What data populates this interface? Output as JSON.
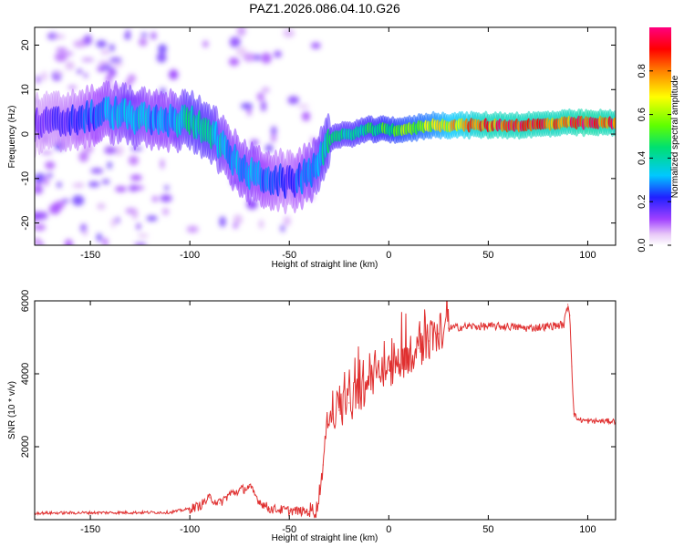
{
  "title": "PAZ1.2026.086.04.10.G26",
  "chart_data": [
    {
      "type": "heatmap",
      "title": "PAZ1.2026.086.04.10.G26",
      "xlabel": "Height of straight line (km)",
      "ylabel": "Frequency (Hz)",
      "xlim": [
        -178,
        114
      ],
      "ylim": [
        -25,
        24
      ],
      "xticks": [
        -150,
        -100,
        -50,
        0,
        50,
        100
      ],
      "xtick_labels": [
        "-150",
        "-100",
        "-50",
        "0",
        "50",
        "100"
      ],
      "yticks": [
        -20,
        -10,
        0,
        10,
        20
      ],
      "ytick_labels": [
        "-20",
        "-10",
        "0",
        "10",
        "20"
      ],
      "ridge": {
        "x": [
          -178,
          -160,
          -140,
          -130,
          -120,
          -110,
          -100,
          -90,
          -80,
          -70,
          -60,
          -50,
          -40,
          -35,
          -30,
          -20,
          -10,
          0,
          10,
          20,
          30,
          50,
          70,
          90,
          100,
          114
        ],
        "y": [
          2,
          3,
          5,
          4,
          3,
          3,
          3,
          1,
          -5,
          -9,
          -10,
          -11,
          -9,
          -6,
          -1,
          0,
          1,
          1,
          1,
          2,
          2,
          2,
          2,
          2.5,
          2.5,
          2.5
        ],
        "amplitude": [
          0.15,
          0.2,
          0.3,
          0.35,
          0.3,
          0.3,
          0.4,
          0.4,
          0.3,
          0.3,
          0.25,
          0.2,
          0.3,
          0.35,
          0.4,
          0.4,
          0.45,
          0.5,
          0.55,
          0.6,
          0.7,
          0.85,
          0.85,
          0.85,
          0.9,
          0.85
        ]
      },
      "colorbar": {
        "label": "Normalized spectral amplitude",
        "range": [
          0,
          1
        ],
        "ticks": [
          0.0,
          0.2,
          0.4,
          0.6,
          0.8
        ],
        "tick_labels": [
          "0.0",
          "0.2",
          "0.4",
          "0.6",
          "0.8"
        ]
      }
    },
    {
      "type": "line",
      "xlabel": "Height of straight line (km)",
      "ylabel": "SNR (10 * v/v)",
      "xlim": [
        -178,
        114
      ],
      "ylim": [
        0,
        6000
      ],
      "xticks": [
        -150,
        -100,
        -50,
        0,
        50,
        100
      ],
      "xtick_labels": [
        "-150",
        "-100",
        "-50",
        "0",
        "50",
        "100"
      ],
      "yticks": [
        2000,
        4000,
        6000
      ],
      "ytick_labels": [
        "2000",
        "4000",
        "6000"
      ],
      "color": "#e03030",
      "series": [
        {
          "name": "SNR",
          "x": [
            -178,
            -150,
            -110,
            -100,
            -95,
            -90,
            -85,
            -80,
            -75,
            -70,
            -65,
            -60,
            -50,
            -40,
            -36,
            -33,
            -31,
            -28,
            -25,
            -20,
            -15,
            -10,
            -5,
            0,
            5,
            10,
            15,
            20,
            25,
            30,
            40,
            50,
            60,
            70,
            80,
            88,
            90,
            91,
            92,
            93,
            95,
            100,
            105,
            114
          ],
          "y": [
            180,
            190,
            200,
            300,
            380,
            600,
            450,
            700,
            800,
            900,
            500,
            300,
            250,
            220,
            300,
            1500,
            2700,
            2900,
            3000,
            3200,
            3500,
            3700,
            3900,
            4100,
            4300,
            4500,
            4700,
            4900,
            5100,
            5250,
            5300,
            5300,
            5300,
            5250,
            5300,
            5350,
            5900,
            5600,
            4200,
            2900,
            2750,
            2700,
            2700,
            2700
          ]
        }
      ]
    }
  ]
}
